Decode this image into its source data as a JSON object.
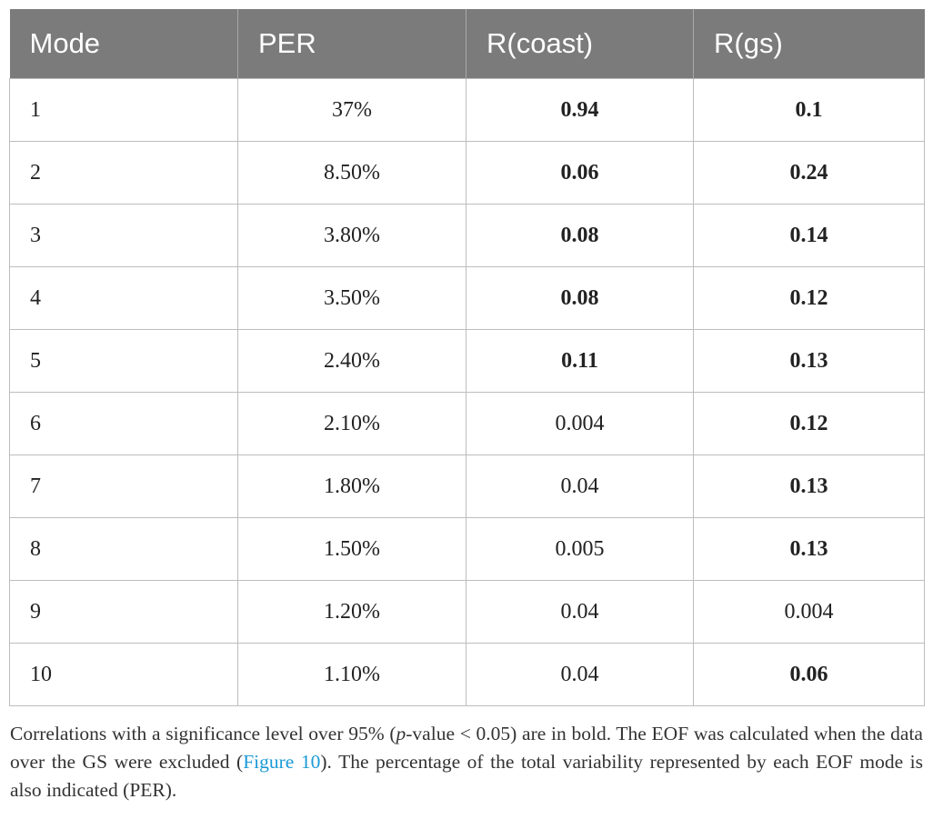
{
  "table": {
    "headers": [
      "Mode",
      "PER",
      "R(coast)",
      "R(gs)"
    ],
    "rows": [
      {
        "mode": "1",
        "per": "37%",
        "r_coast": "0.94",
        "r_coast_bold": true,
        "r_gs": "0.1",
        "r_gs_bold": true
      },
      {
        "mode": "2",
        "per": "8.50%",
        "r_coast": "0.06",
        "r_coast_bold": true,
        "r_gs": "0.24",
        "r_gs_bold": true
      },
      {
        "mode": "3",
        "per": "3.80%",
        "r_coast": "0.08",
        "r_coast_bold": true,
        "r_gs": "0.14",
        "r_gs_bold": true
      },
      {
        "mode": "4",
        "per": "3.50%",
        "r_coast": "0.08",
        "r_coast_bold": true,
        "r_gs": "0.12",
        "r_gs_bold": true
      },
      {
        "mode": "5",
        "per": "2.40%",
        "r_coast": "0.11",
        "r_coast_bold": true,
        "r_gs": "0.13",
        "r_gs_bold": true
      },
      {
        "mode": "6",
        "per": "2.10%",
        "r_coast": "0.004",
        "r_coast_bold": false,
        "r_gs": "0.12",
        "r_gs_bold": true
      },
      {
        "mode": "7",
        "per": "1.80%",
        "r_coast": "0.04",
        "r_coast_bold": false,
        "r_gs": "0.13",
        "r_gs_bold": true
      },
      {
        "mode": "8",
        "per": "1.50%",
        "r_coast": "0.005",
        "r_coast_bold": false,
        "r_gs": "0.13",
        "r_gs_bold": true
      },
      {
        "mode": "9",
        "per": "1.20%",
        "r_coast": "0.04",
        "r_coast_bold": false,
        "r_gs": "0.004",
        "r_gs_bold": false
      },
      {
        "mode": "10",
        "per": "1.10%",
        "r_coast": "0.04",
        "r_coast_bold": false,
        "r_gs": "0.06",
        "r_gs_bold": true
      }
    ]
  },
  "caption": {
    "part1": "Correlations with a significance level over 95% (",
    "p_italic": "p",
    "part2": "-value < 0.05) are in bold. The EOF was calculated when the data over the GS were excluded (",
    "figure_link": "Figure 10",
    "part3": "). The percentage of the total variability represented by each EOF mode is also indicated (PER)."
  },
  "colors": {
    "header_bg": "#7b7b7b",
    "header_text": "#ffffff",
    "link": "#1a9ad6",
    "grid": "#bdbdbd"
  }
}
